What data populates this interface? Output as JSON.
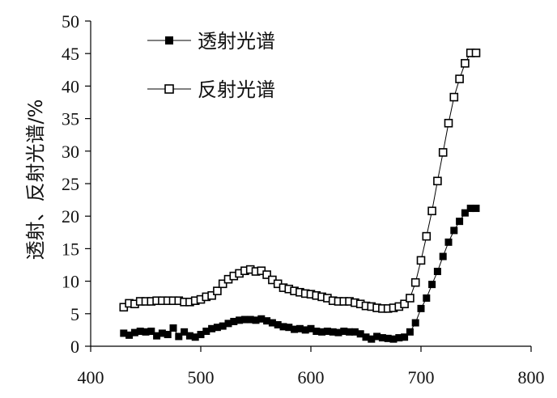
{
  "chart_data": {
    "type": "line",
    "title": "",
    "xlabel": "",
    "ylabel": "透射、反射光谱/%",
    "xlim": [
      400,
      800
    ],
    "ylim": [
      0,
      50
    ],
    "xticks": [
      "400",
      "500",
      "600",
      "700",
      "800"
    ],
    "yticks": [
      "0",
      "5",
      "10",
      "15",
      "20",
      "25",
      "30",
      "35",
      "40",
      "45",
      "50"
    ],
    "grid": false,
    "legend_position": "top-left",
    "series": [
      {
        "name": "透射光谱",
        "marker": "filled-square",
        "color": "#000000",
        "x": [
          430,
          435,
          440,
          445,
          450,
          455,
          460,
          465,
          470,
          475,
          480,
          485,
          490,
          495,
          500,
          505,
          510,
          515,
          520,
          525,
          530,
          535,
          540,
          545,
          550,
          555,
          560,
          565,
          570,
          575,
          580,
          585,
          590,
          595,
          600,
          605,
          610,
          615,
          620,
          625,
          630,
          635,
          640,
          645,
          650,
          655,
          660,
          665,
          670,
          675,
          680,
          685,
          690,
          695,
          700,
          705,
          710,
          715,
          720,
          725,
          730,
          735,
          740,
          745,
          750
        ],
        "y": [
          2.0,
          1.7,
          2.1,
          2.3,
          2.2,
          2.3,
          1.6,
          2.0,
          1.8,
          2.8,
          1.5,
          2.2,
          1.6,
          1.4,
          1.8,
          2.3,
          2.7,
          2.9,
          3.1,
          3.5,
          3.8,
          4.0,
          4.1,
          4.1,
          4.0,
          4.2,
          3.9,
          3.6,
          3.3,
          3.0,
          2.9,
          2.6,
          2.7,
          2.5,
          2.7,
          2.3,
          2.2,
          2.3,
          2.2,
          2.1,
          2.3,
          2.2,
          2.2,
          1.9,
          1.4,
          1.1,
          1.5,
          1.3,
          1.2,
          1.1,
          1.3,
          1.4,
          2.2,
          3.6,
          5.8,
          7.4,
          9.5,
          11.5,
          13.8,
          16.0,
          17.8,
          19.2,
          20.5,
          21.2,
          21.2
        ]
      },
      {
        "name": "反射光谱",
        "marker": "open-square",
        "color": "#000000",
        "x": [
          430,
          435,
          440,
          445,
          450,
          455,
          460,
          465,
          470,
          475,
          480,
          485,
          490,
          495,
          500,
          505,
          510,
          515,
          520,
          525,
          530,
          535,
          540,
          545,
          550,
          555,
          560,
          565,
          570,
          575,
          580,
          585,
          590,
          595,
          600,
          605,
          610,
          615,
          620,
          625,
          630,
          635,
          640,
          645,
          650,
          655,
          660,
          665,
          670,
          675,
          680,
          685,
          690,
          695,
          700,
          705,
          710,
          715,
          720,
          725,
          730,
          735,
          740,
          745,
          750
        ],
        "y": [
          6.0,
          6.6,
          6.5,
          6.9,
          6.9,
          6.9,
          7.0,
          7.0,
          7.0,
          7.0,
          7.0,
          6.8,
          6.8,
          7.0,
          7.2,
          7.6,
          7.8,
          8.5,
          9.6,
          10.3,
          10.8,
          11.2,
          11.6,
          11.8,
          11.5,
          11.6,
          11.0,
          10.2,
          9.6,
          9.0,
          8.8,
          8.5,
          8.3,
          8.1,
          8.0,
          7.8,
          7.6,
          7.4,
          7.0,
          6.9,
          6.9,
          6.9,
          6.7,
          6.5,
          6.2,
          6.1,
          5.9,
          5.8,
          5.8,
          5.9,
          6.1,
          6.5,
          7.4,
          9.8,
          13.2,
          16.9,
          20.8,
          25.4,
          29.8,
          34.3,
          38.3,
          41.1,
          43.5,
          45.1,
          45.1
        ]
      }
    ]
  }
}
